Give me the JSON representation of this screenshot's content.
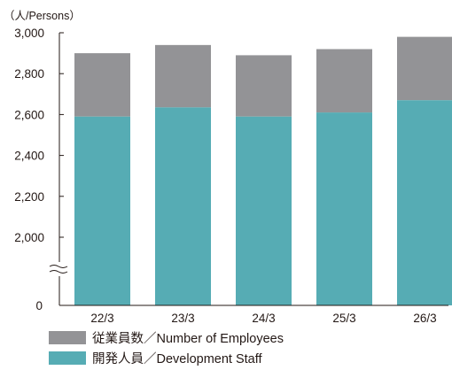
{
  "chart_data": {
    "type": "bar",
    "stacked": true,
    "unit_label": "（人/Persons）",
    "categories": [
      "22/3",
      "23/3",
      "24/3",
      "25/3",
      "26/3"
    ],
    "y_ticks": [
      {
        "value": 0,
        "label": "0"
      },
      {
        "value": 2000,
        "label": "2,000"
      },
      {
        "value": 2200,
        "label": "2,200"
      },
      {
        "value": 2400,
        "label": "2,400"
      },
      {
        "value": 2600,
        "label": "2,600"
      },
      {
        "value": 2800,
        "label": "2,800"
      },
      {
        "value": 3000,
        "label": "3,000"
      }
    ],
    "axis_break": {
      "from": 0,
      "to": 2000,
      "symbol": "≈"
    },
    "ylim": [
      0,
      3000
    ],
    "grid": false,
    "legend_position": "bottom-left",
    "series": [
      {
        "name": "開発人員／Development Staff",
        "color": "#56acb4",
        "values": [
          2590,
          2635,
          2590,
          2610,
          2670
        ]
      },
      {
        "name": "従業員数／Number of Employees",
        "color": "#939396",
        "totals": [
          2900,
          2940,
          2890,
          2920,
          2980
        ]
      }
    ],
    "legend_order": [
      "従業員数／Number of Employees",
      "開発人員／Development Staff"
    ]
  }
}
